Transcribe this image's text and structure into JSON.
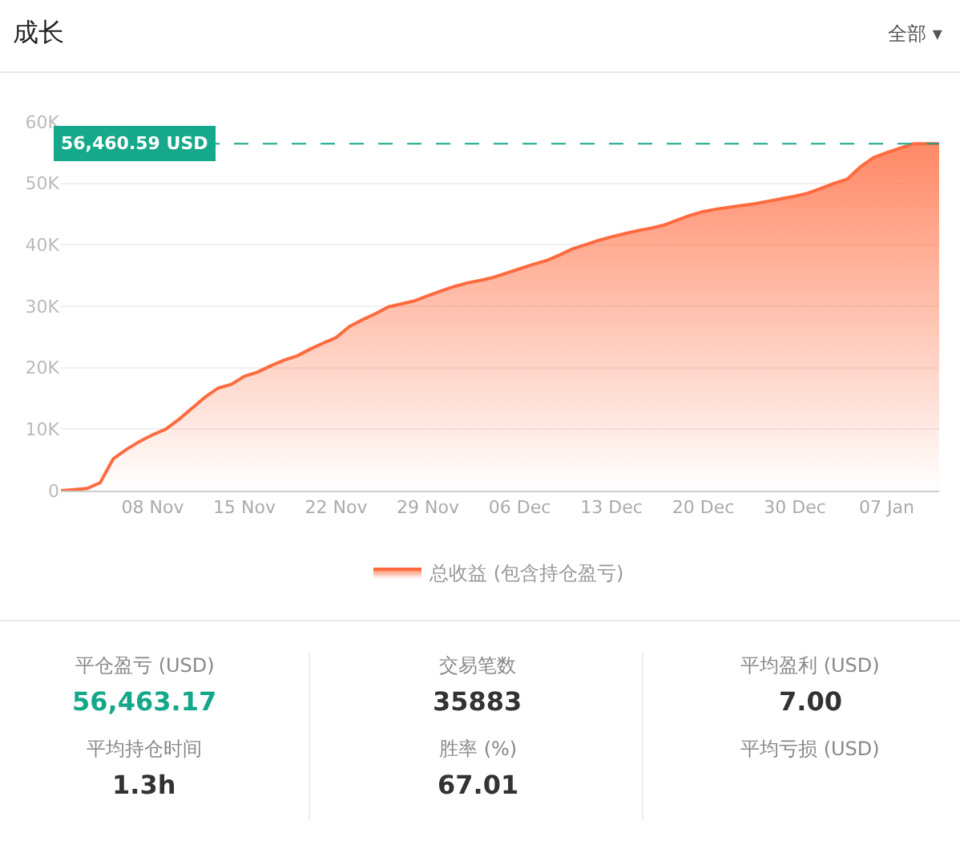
{
  "chart_data": [
    {
      "type": "area",
      "title": "成长",
      "annotations": [
        "全部 ▾"
      ],
      "categories": [
        null,
        null,
        null,
        null,
        null,
        null,
        null,
        "08 Nov",
        null,
        null,
        null,
        null,
        null,
        null,
        "15 Nov",
        null,
        null,
        null,
        null,
        null,
        null,
        "22 Nov",
        null,
        null,
        null,
        null,
        null,
        null,
        "29 Nov",
        null,
        null,
        null,
        null,
        null,
        null,
        "06 Dec",
        null,
        null,
        null,
        null,
        null,
        null,
        "13 Dec",
        null,
        null,
        null,
        null,
        null,
        null,
        "20 Dec",
        null,
        null,
        null,
        null,
        null,
        null,
        "30 Dec",
        null,
        null,
        null,
        null,
        null,
        null,
        "07 Jan",
        null,
        null,
        null,
        null
      ],
      "series": [
        {
          "name": "总收益 (包含持仓盈亏)",
          "color": "#ff6b3f",
          "values": [
            0,
            150,
            350,
            1300,
            5200,
            6700,
            8000,
            9100,
            10000,
            11600,
            13400,
            15200,
            16700,
            17300,
            18600,
            19300,
            20300,
            21200,
            21900,
            23000,
            24000,
            24900,
            26700,
            27800,
            28800,
            29900,
            30400,
            30900,
            31700,
            32500,
            33200,
            33800,
            34200,
            34700,
            35400,
            36100,
            36800,
            37400,
            38300,
            39300,
            40000,
            40700,
            41300,
            41800,
            42300,
            42700,
            43200,
            44000,
            44800,
            45400,
            45800,
            46100,
            46400,
            46700,
            47100,
            47500,
            47900,
            48400,
            49200,
            50000,
            50700,
            52700,
            54200,
            55000,
            55700,
            56400,
            56450,
            56460.59
          ]
        }
      ],
      "ylim": [
        0,
        60000
      ],
      "yticks": [
        0,
        {
          "value": 10000,
          "label": "10K"
        },
        {
          "value": 20000,
          "label": "20K"
        },
        {
          "value": 30000,
          "label": "30K"
        },
        {
          "value": 40000,
          "label": "40K"
        },
        {
          "value": 50000,
          "label": "50K"
        },
        {
          "value": 60000,
          "label": "60K"
        }
      ],
      "ref_lines": [
        {
          "axis": "y",
          "value": 56460.59,
          "label": "56,460.59 USD",
          "color": "#16a88a",
          "line_style": "dashed"
        }
      ],
      "grid": "y",
      "legend": "bottom"
    },
    {
      "type": "other",
      "color": "#14a88b",
      "annotations": [
        "平仓盈亏 (USD)",
        "56,463.17",
        "交易笔数",
        "35883",
        "平均盈利 (USD)",
        "7.00",
        "平均持仓时间",
        "1.3h",
        "胜率 (%)",
        "67.01",
        "平均亏损 (USD)"
      ]
    }
  ]
}
